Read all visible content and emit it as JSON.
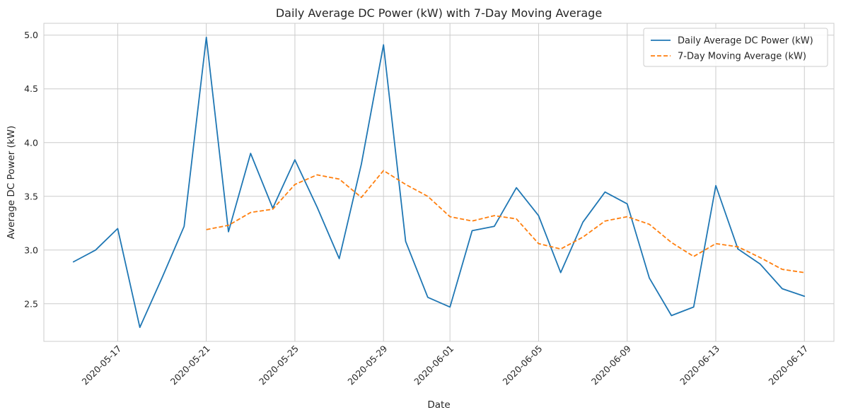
{
  "chart_data": {
    "type": "line",
    "title": "Daily Average DC Power (kW) with 7-Day Moving Average",
    "xlabel": "Date",
    "ylabel": "Average DC Power (kW)",
    "x": [
      "2020-05-15",
      "2020-05-16",
      "2020-05-17",
      "2020-05-18",
      "2020-05-19",
      "2020-05-20",
      "2020-05-21",
      "2020-05-22",
      "2020-05-23",
      "2020-05-24",
      "2020-05-25",
      "2020-05-26",
      "2020-05-27",
      "2020-05-28",
      "2020-05-29",
      "2020-05-30",
      "2020-05-31",
      "2020-06-01",
      "2020-06-02",
      "2020-06-03",
      "2020-06-04",
      "2020-06-05",
      "2020-06-06",
      "2020-06-07",
      "2020-06-08",
      "2020-06-09",
      "2020-06-10",
      "2020-06-11",
      "2020-06-12",
      "2020-06-13",
      "2020-06-14",
      "2020-06-15",
      "2020-06-16",
      "2020-06-17"
    ],
    "series": [
      {
        "name": "Daily Average DC Power (kW)",
        "color": "#1f77b4",
        "style": "solid",
        "values": [
          2.89,
          3.0,
          3.2,
          2.28,
          2.74,
          3.22,
          4.98,
          3.17,
          3.9,
          3.39,
          3.84,
          3.4,
          2.92,
          3.8,
          4.91,
          3.08,
          2.56,
          2.47,
          3.18,
          3.22,
          3.58,
          3.32,
          2.79,
          3.26,
          3.54,
          3.43,
          2.74,
          2.39,
          2.47,
          3.6,
          3.01,
          2.87,
          2.64,
          2.57
        ]
      },
      {
        "name": "7-Day Moving Average (kW)",
        "color": "#ff7f0e",
        "style": "dashed",
        "values": [
          null,
          null,
          null,
          null,
          null,
          null,
          3.19,
          3.23,
          3.35,
          3.38,
          3.61,
          3.7,
          3.66,
          3.49,
          3.74,
          3.61,
          3.5,
          3.31,
          3.27,
          3.32,
          3.29,
          3.06,
          3.01,
          3.12,
          3.27,
          3.31,
          3.24,
          3.07,
          2.94,
          3.06,
          3.03,
          2.93,
          2.82,
          2.79
        ]
      }
    ],
    "x_ticks": [
      "2020-05-17",
      "2020-05-21",
      "2020-05-25",
      "2020-05-29",
      "2020-06-01",
      "2020-06-05",
      "2020-06-09",
      "2020-06-13",
      "2020-06-17"
    ],
    "y_ticks": [
      2.5,
      3.0,
      3.5,
      4.0,
      4.5,
      5.0
    ],
    "ylim": [
      2.15,
      5.11
    ],
    "xlim": [
      "2020-05-13T16:00",
      "2020-06-18T08:00"
    ],
    "grid": true,
    "legend_position": "top-right"
  }
}
